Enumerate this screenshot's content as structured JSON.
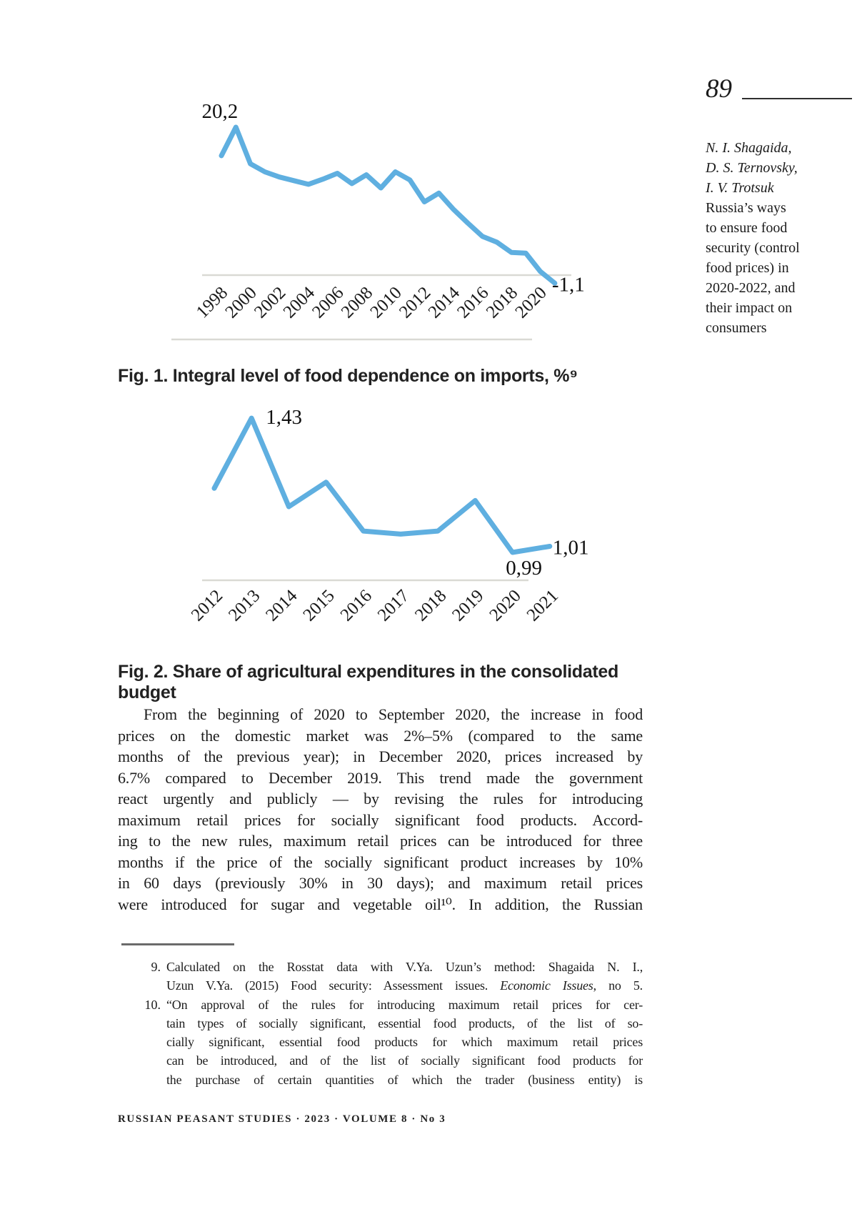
{
  "page": {
    "number": "89",
    "footer": "RUSSIAN PEASANT STUDIES · 2023 · VOLUME 8 · No 3"
  },
  "sidebar": {
    "authors": [
      "N. I. Shagaida,",
      "D. S. Ternovsky,",
      "I. V. Trotsuk"
    ],
    "title_lines": [
      "Russia’s ways",
      "to ensure food",
      "security (control",
      "food prices) in",
      "2020-2022, and",
      "their impact on",
      "consumers"
    ]
  },
  "chart_data": [
    {
      "type": "line",
      "title": "Fig. 1. Integral level of food dependence on imports, %⁹",
      "xlabel": "",
      "ylabel": "",
      "x": [
        1998,
        1999,
        2000,
        2001,
        2002,
        2003,
        2004,
        2005,
        2006,
        2007,
        2008,
        2009,
        2010,
        2011,
        2012,
        2013,
        2014,
        2015,
        2016,
        2017,
        2018,
        2019,
        2020,
        2021
      ],
      "values": [
        16.3,
        20.2,
        15.2,
        14.1,
        13.4,
        12.9,
        12.4,
        13.1,
        13.9,
        12.5,
        13.7,
        11.9,
        14.1,
        13.0,
        10.0,
        11.2,
        9.0,
        7.1,
        5.3,
        4.5,
        3.1,
        3.0,
        0.5,
        -1.1
      ],
      "x_tick_labels": [
        "1998",
        "2000",
        "2002",
        "2004",
        "2006",
        "2008",
        "2010",
        "2012",
        "2014",
        "2016",
        "2018",
        "2020"
      ],
      "annotations": [
        {
          "x": 1999,
          "value": 20.2,
          "label": "20,2"
        },
        {
          "x": 2021,
          "value": -1.1,
          "label": "-1,1"
        }
      ],
      "ylim": [
        -2,
        22
      ],
      "grid": "zero baseline only",
      "legend": "none",
      "line_color": "#5FAFE0",
      "axis_color": "#D9D9D4"
    },
    {
      "type": "line",
      "title": "Fig. 2. Share of agricultural expenditures in the consolidated budget",
      "xlabel": "",
      "ylabel": "",
      "x": [
        2012,
        2013,
        2014,
        2015,
        2016,
        2017,
        2018,
        2019,
        2020,
        2021
      ],
      "values": [
        1.2,
        1.43,
        1.14,
        1.22,
        1.06,
        1.05,
        1.06,
        1.16,
        0.99,
        1.01
      ],
      "x_tick_labels": [
        "2012",
        "2013",
        "2014",
        "2015",
        "2016",
        "2017",
        "2018",
        "2019",
        "2020",
        "2021"
      ],
      "annotations": [
        {
          "x": 2013,
          "value": 1.43,
          "label": "1,43"
        },
        {
          "x": 2020,
          "value": 0.99,
          "label": "0,99"
        },
        {
          "x": 2021,
          "value": 1.01,
          "label": "1,01"
        }
      ],
      "ylim": [
        0.88,
        1.5
      ],
      "grid": "bottom axis only",
      "legend": "none",
      "line_color": "#5FAFE0",
      "axis_color": "#D9D9D4"
    }
  ],
  "body": {
    "lines": [
      "From the beginning of 2020 to September 2020, the increase in food",
      "prices on the domestic market was 2%–5% (compared to the same",
      "months of the previous year); in December 2020, prices increased by",
      "6.7% compared to December 2019. This trend made the government",
      "react urgently and publicly — by revising the rules for introducing",
      "maximum retail prices for socially significant food products. Accord-",
      "ing to the new rules, maximum retail prices can be introduced for three",
      "months if the price of the socially significant product increases by 10%",
      "in 60 days (previously 30% in 30 days); and maximum retail prices",
      "were introduced for sugar and vegetable oil¹⁰. In addition, the Russian"
    ]
  },
  "footnotes": [
    {
      "num": "9.",
      "lines": [
        "Calculated on the Rosstat data with V.Ya. Uzun’s method: Shagaida N. I.,",
        "Uzun V.Ya. (2015) Food security: Assessment issues. <i>Economic Issues</i>, no 5."
      ]
    },
    {
      "num": "10.",
      "lines": [
        "“On approval of the rules for introducing maximum retail prices for cer-",
        "tain types of socially significant, essential food products, of the list of so-",
        "cially significant, essential food products for which maximum retail prices",
        "can be introduced, and of the list of socially significant food products for",
        "the purchase of certain quantities of which the trader (business entity) is"
      ]
    }
  ]
}
